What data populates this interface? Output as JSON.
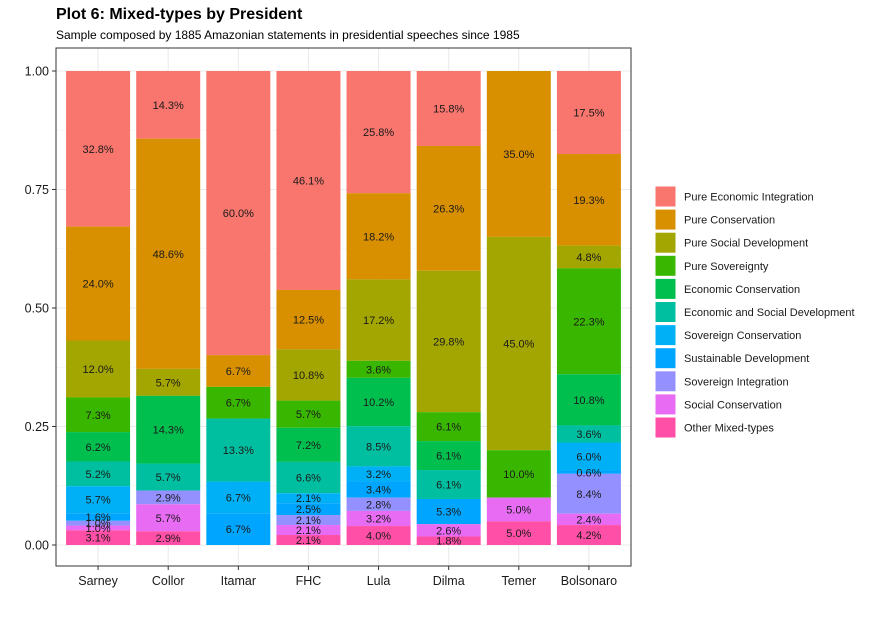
{
  "chart_data": {
    "type": "bar",
    "stacked": true,
    "normalized": true,
    "title": "Plot 6: Mixed-types by President",
    "subtitle": "Sample composed by 1885 Amazonian statements in presidential speeches since 1985",
    "xlabel": "",
    "ylabel": "",
    "ylim": [
      0,
      1
    ],
    "yticks": [
      "0.00",
      "0.25",
      "0.50",
      "0.75",
      "1.00"
    ],
    "ytick_values": [
      0,
      0.25,
      0.5,
      0.75,
      1.0
    ],
    "grid": true,
    "legend_position": "right",
    "categories": [
      "Sarney",
      "Collor",
      "Itamar",
      "FHC",
      "Lula",
      "Dilma",
      "Temer",
      "Bolsonaro"
    ],
    "series": [
      {
        "name": "Pure Economic Integration",
        "color": "#F8766D",
        "values": [
          0.328,
          0.143,
          0.6,
          0.461,
          0.258,
          0.158,
          0.0,
          0.175
        ],
        "labels": [
          "32.8%",
          "14.3%",
          "60.0%",
          "46.1%",
          "25.8%",
          "15.8%",
          "",
          "17.5%"
        ]
      },
      {
        "name": "Pure Conservation",
        "color": "#D89000",
        "values": [
          0.24,
          0.486,
          0.067,
          0.125,
          0.182,
          0.263,
          0.35,
          0.193
        ],
        "labels": [
          "24.0%",
          "48.6%",
          "6.7%",
          "12.5%",
          "18.2%",
          "26.3%",
          "35.0%",
          "19.3%"
        ]
      },
      {
        "name": "Pure Social Development",
        "color": "#A3A500",
        "values": [
          0.12,
          0.057,
          0.0,
          0.108,
          0.172,
          0.298,
          0.45,
          0.048
        ],
        "labels": [
          "12.0%",
          "5.7%",
          "",
          "10.8%",
          "17.2%",
          "29.8%",
          "45.0%",
          "4.8%"
        ]
      },
      {
        "name": "Pure Sovereignty",
        "color": "#39B600",
        "values": [
          0.073,
          0.0,
          0.067,
          0.057,
          0.036,
          0.061,
          0.1,
          0.223
        ],
        "labels": [
          "7.3%",
          "",
          "6.7%",
          "5.7%",
          "3.6%",
          "6.1%",
          "10.0%",
          "22.3%"
        ]
      },
      {
        "name": "Economic Conservation",
        "color": "#00BF4F",
        "values": [
          0.062,
          0.143,
          0.0,
          0.072,
          0.102,
          0.061,
          0.0,
          0.108
        ],
        "labels": [
          "6.2%",
          "14.3%",
          "",
          "7.2%",
          "10.2%",
          "6.1%",
          "",
          "10.8%"
        ]
      },
      {
        "name": "Economic and Social Development",
        "color": "#00BFA0",
        "values": [
          0.052,
          0.057,
          0.133,
          0.066,
          0.085,
          0.061,
          0.0,
          0.036
        ],
        "labels": [
          "5.2%",
          "5.7%",
          "13.3%",
          "6.6%",
          "8.5%",
          "6.1%",
          "",
          "3.6%"
        ]
      },
      {
        "name": "Sovereign Conservation",
        "color": "#00B0F6",
        "values": [
          0.057,
          0.0,
          0.067,
          0.021,
          0.032,
          0.0,
          0.0,
          0.06
        ],
        "labels": [
          "5.7%",
          "",
          "6.7%",
          "2.1%",
          "3.2%",
          "",
          "",
          "6.0%"
        ]
      },
      {
        "name": "Sustainable Development",
        "color": "#00A5FF",
        "values": [
          0.016,
          0.0,
          0.067,
          0.025,
          0.034,
          0.053,
          0.0,
          0.006
        ],
        "labels": [
          "1.6%",
          "",
          "6.7%",
          "2.5%",
          "3.4%",
          "5.3%",
          "",
          "0.6%"
        ]
      },
      {
        "name": "Sovereign Integration",
        "color": "#9590FF",
        "values": [
          0.01,
          0.029,
          0.0,
          0.021,
          0.028,
          0.0,
          0.0,
          0.084
        ],
        "labels": [
          "1.0%",
          "2.9%",
          "",
          "2.1%",
          "2.8%",
          "",
          "",
          "8.4%"
        ]
      },
      {
        "name": "Social Conservation",
        "color": "#E76BF3",
        "values": [
          0.01,
          0.057,
          0.0,
          0.021,
          0.032,
          0.026,
          0.05,
          0.024
        ],
        "labels": [
          "1.0%",
          "5.7%",
          "",
          "2.1%",
          "3.2%",
          "2.6%",
          "5.0%",
          "2.4%"
        ]
      },
      {
        "name": "Other Mixed-types",
        "color": "#FF4FA6",
        "values": [
          0.031,
          0.029,
          0.0,
          0.021,
          0.04,
          0.018,
          0.05,
          0.042
        ],
        "labels": [
          "3.1%",
          "2.9%",
          "",
          "2.1%",
          "4.0%",
          "1.8%",
          "5.0%",
          "4.2%"
        ]
      }
    ]
  }
}
